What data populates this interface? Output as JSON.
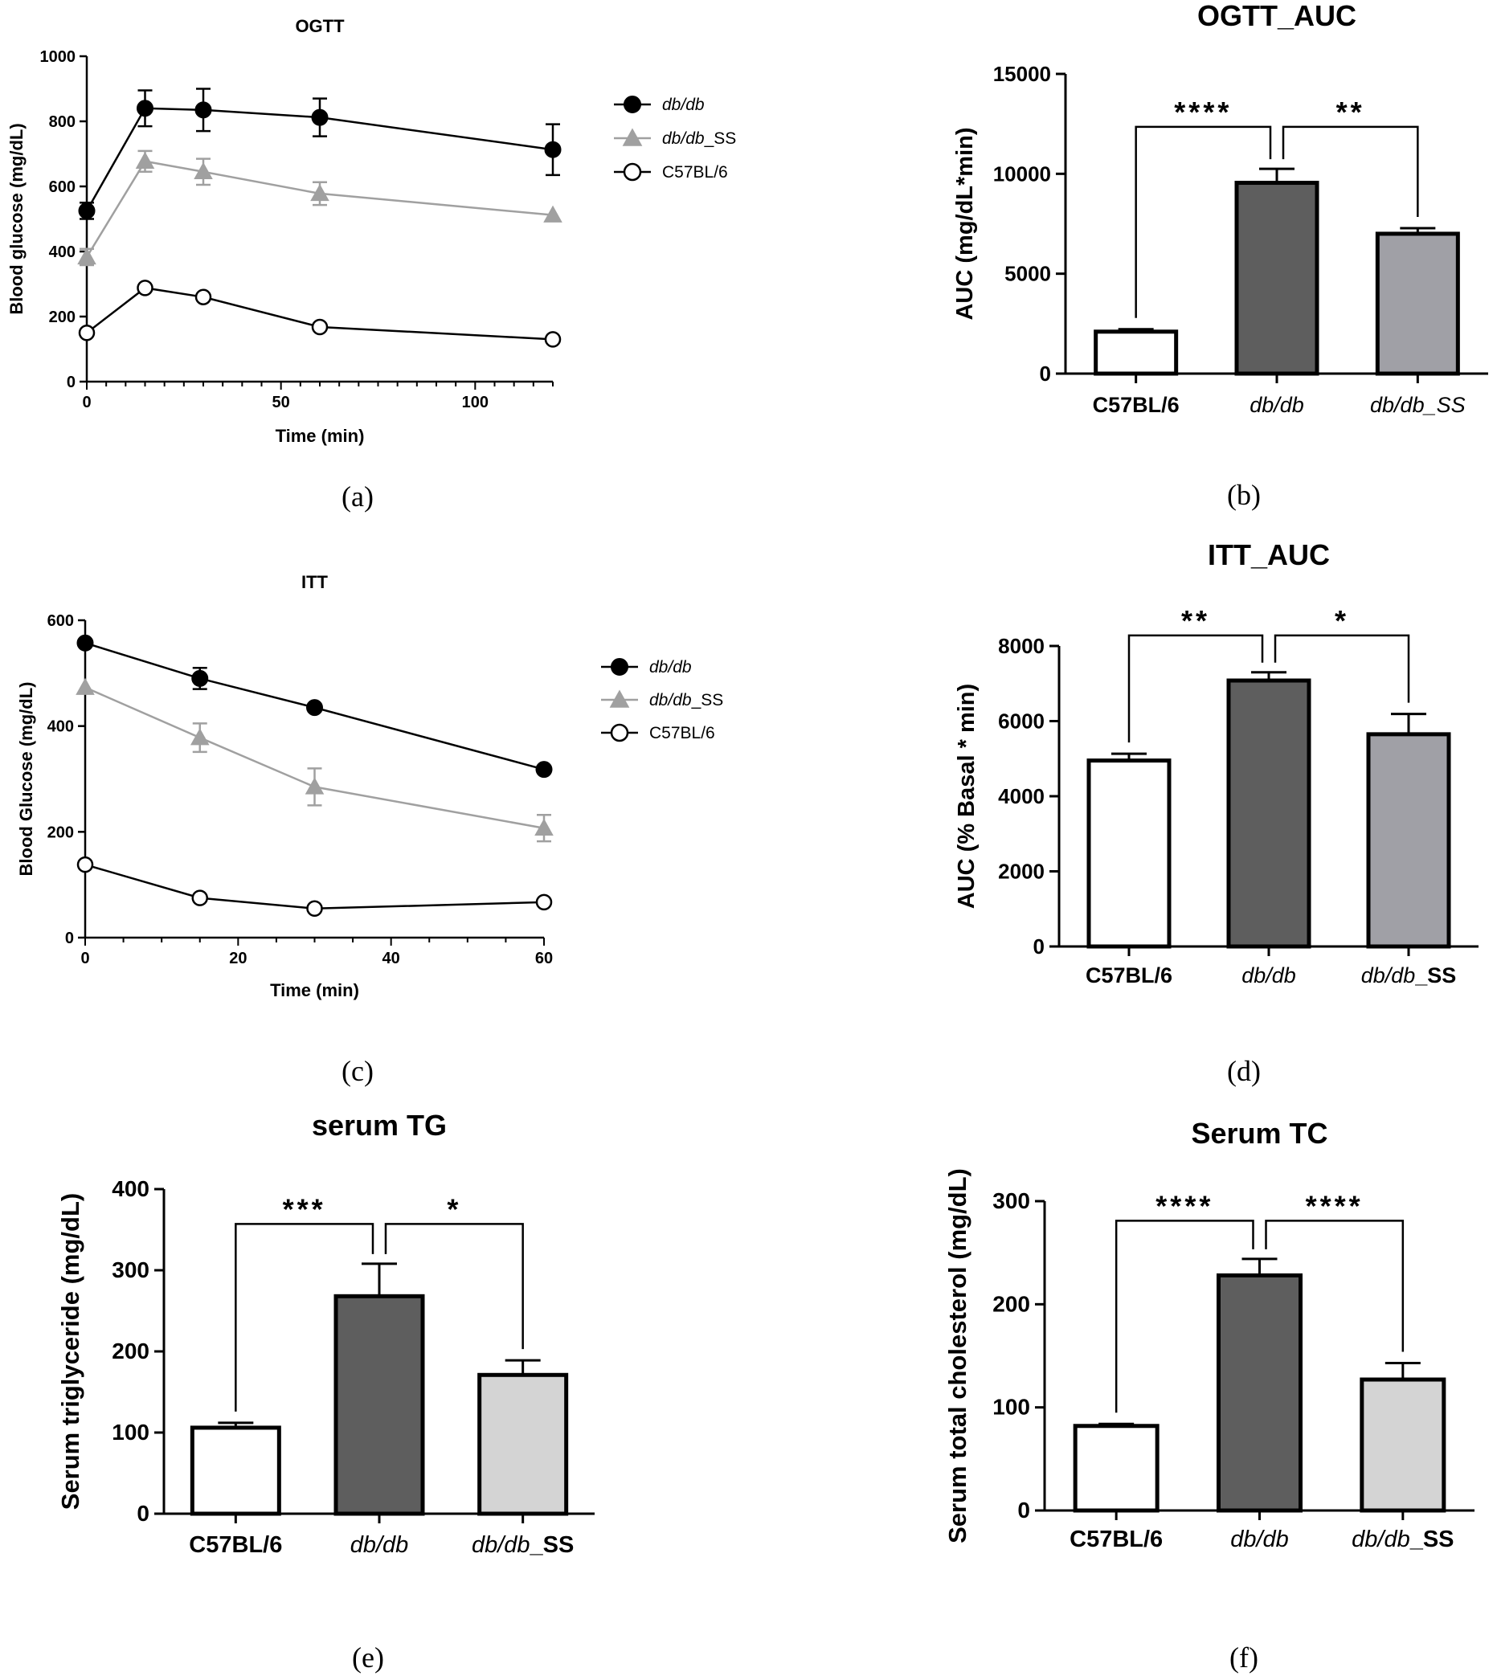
{
  "chart_data": [
    {
      "id": "a",
      "type": "line",
      "panel_label": "(a)",
      "title": "OGTT",
      "xlabel": "Time (min)",
      "ylabel": "Blood glucose (mg/dL)",
      "xlim": [
        0,
        120
      ],
      "ylim": [
        0,
        1000
      ],
      "xticks": [
        0,
        50,
        100
      ],
      "yticks": [
        0,
        200,
        400,
        600,
        800,
        1000
      ],
      "x": [
        0,
        15,
        30,
        60,
        120
      ],
      "series": [
        {
          "name": "db/db",
          "name_main": "db/db",
          "name_suffix": "",
          "marker": "filled-circle",
          "color": "#000000",
          "values": [
            525,
            840,
            835,
            812,
            713
          ],
          "errors": [
            25,
            55,
            65,
            58,
            78
          ]
        },
        {
          "name": "db/db_SS",
          "name_main": "db/db",
          "name_suffix": "_SS",
          "marker": "triangle",
          "color": "#a0a0a0",
          "values": [
            383,
            677,
            645,
            578,
            512
          ],
          "errors": [
            25,
            32,
            40,
            35,
            0
          ]
        },
        {
          "name": "C57BL/6",
          "name_main": "",
          "name_suffix": "C57BL/6",
          "marker": "open-circle",
          "color": "#000000",
          "values": [
            150,
            288,
            260,
            168,
            130
          ],
          "errors": [
            0,
            0,
            0,
            0,
            0
          ]
        }
      ]
    },
    {
      "id": "b",
      "type": "bar",
      "panel_label": "(b)",
      "title": "OGTT_AUC",
      "ylabel": "AUC (mg/dL*min)",
      "ylim": [
        0,
        15000
      ],
      "yticks": [
        0,
        5000,
        10000,
        15000
      ],
      "categories": [
        "C57BL/6",
        "db/db",
        "db/db_SS"
      ],
      "cat_main": [
        "C57BL/6",
        "db/db",
        "db/db_SS"
      ],
      "cat_suffix": [
        "",
        "",
        ""
      ],
      "cat_bold": [
        true,
        false,
        false
      ],
      "values": [
        2100,
        9550,
        7000
      ],
      "errors": [
        120,
        700,
        280
      ],
      "bar_colors": [
        "#ffffff",
        "#5e5e5e",
        "#a0a0a6"
      ],
      "significance": [
        {
          "from": 0,
          "to": 1,
          "label": "****",
          "y": 12350
        },
        {
          "from": 1,
          "to": 2,
          "label": "**",
          "y": 12350
        }
      ]
    },
    {
      "id": "c",
      "type": "line",
      "panel_label": "(c)",
      "title": "ITT",
      "xlabel": "Time (min)",
      "ylabel": "Blood Glucose (mg/dL)",
      "xlim": [
        0,
        60
      ],
      "ylim": [
        0,
        600
      ],
      "xticks": [
        0,
        20,
        40,
        60
      ],
      "yticks": [
        0,
        200,
        400,
        600
      ],
      "x": [
        0,
        15,
        30,
        60
      ],
      "series": [
        {
          "name": "db/db",
          "name_main": "db/db",
          "name_suffix": "",
          "marker": "filled-circle",
          "color": "#000000",
          "values": [
            557,
            490,
            435,
            318
          ],
          "errors": [
            0,
            20,
            0,
            0
          ]
        },
        {
          "name": "db/db_SS",
          "name_main": "db/db",
          "name_suffix": "_SS",
          "marker": "triangle",
          "color": "#a0a0a0",
          "values": [
            473,
            378,
            285,
            207
          ],
          "errors": [
            0,
            27,
            35,
            25
          ]
        },
        {
          "name": "C57BL/6",
          "name_main": "",
          "name_suffix": "C57BL/6",
          "marker": "open-circle",
          "color": "#000000",
          "values": [
            138,
            75,
            55,
            67
          ],
          "errors": [
            0,
            0,
            0,
            0
          ]
        }
      ]
    },
    {
      "id": "d",
      "type": "bar",
      "panel_label": "(d)",
      "title": "ITT_AUC",
      "ylabel": "AUC (% Basal * min)",
      "ylim": [
        0,
        8000
      ],
      "yticks": [
        0,
        2000,
        4000,
        6000,
        8000
      ],
      "categories": [
        "C57BL/6",
        "db/db",
        "db/db_SS"
      ],
      "cat_main": [
        "C57BL/6",
        "db/db",
        "db/db"
      ],
      "cat_suffix": [
        "",
        "",
        "_SS"
      ],
      "cat_bold": [
        true,
        false,
        false
      ],
      "values": [
        4950,
        7080,
        5650
      ],
      "errors": [
        180,
        220,
        540
      ],
      "bar_colors": [
        "#ffffff",
        "#5e5e5e",
        "#a0a0a6"
      ],
      "significance": [
        {
          "from": 0,
          "to": 1,
          "label": "**",
          "y": 8280
        },
        {
          "from": 1,
          "to": 2,
          "label": "*",
          "y": 8280
        }
      ]
    },
    {
      "id": "e",
      "type": "bar",
      "panel_label": "(e)",
      "title": "serum TG",
      "ylabel": "Serum triglyceride (mg/dL)",
      "ylim": [
        0,
        400
      ],
      "yticks": [
        0,
        100,
        200,
        300,
        400
      ],
      "categories": [
        "C57BL/6",
        "db/db",
        "db/db_SS"
      ],
      "cat_main": [
        "C57BL/6",
        "db/db",
        "db/db"
      ],
      "cat_suffix": [
        "",
        "",
        "_SS"
      ],
      "cat_bold": [
        true,
        false,
        false
      ],
      "values": [
        106,
        268,
        171
      ],
      "errors": [
        6,
        40,
        18
      ],
      "bar_colors": [
        "#ffffff",
        "#5e5e5e",
        "#d4d4d4"
      ],
      "significance": [
        {
          "from": 0,
          "to": 1,
          "label": "***",
          "y": 357
        },
        {
          "from": 1,
          "to": 2,
          "label": "*",
          "y": 357
        }
      ]
    },
    {
      "id": "f",
      "type": "bar",
      "panel_label": "(f)",
      "title": "Serum TC",
      "ylabel": "Serum total cholesterol (mg/dL)",
      "ylim": [
        0,
        300
      ],
      "yticks": [
        0,
        100,
        200,
        300
      ],
      "categories": [
        "C57BL/6",
        "db/db",
        "db/db_SS"
      ],
      "cat_main": [
        "C57BL/6",
        "db/db",
        "db/db"
      ],
      "cat_suffix": [
        "",
        "",
        "_SS"
      ],
      "cat_bold": [
        true,
        false,
        false
      ],
      "values": [
        82,
        228,
        127
      ],
      "errors": [
        2,
        16,
        16
      ],
      "bar_colors": [
        "#ffffff",
        "#5e5e5e",
        "#d4d4d4"
      ],
      "significance": [
        {
          "from": 0,
          "to": 1,
          "label": "****",
          "y": 281
        },
        {
          "from": 1,
          "to": 2,
          "label": "****",
          "y": 281
        }
      ]
    }
  ]
}
